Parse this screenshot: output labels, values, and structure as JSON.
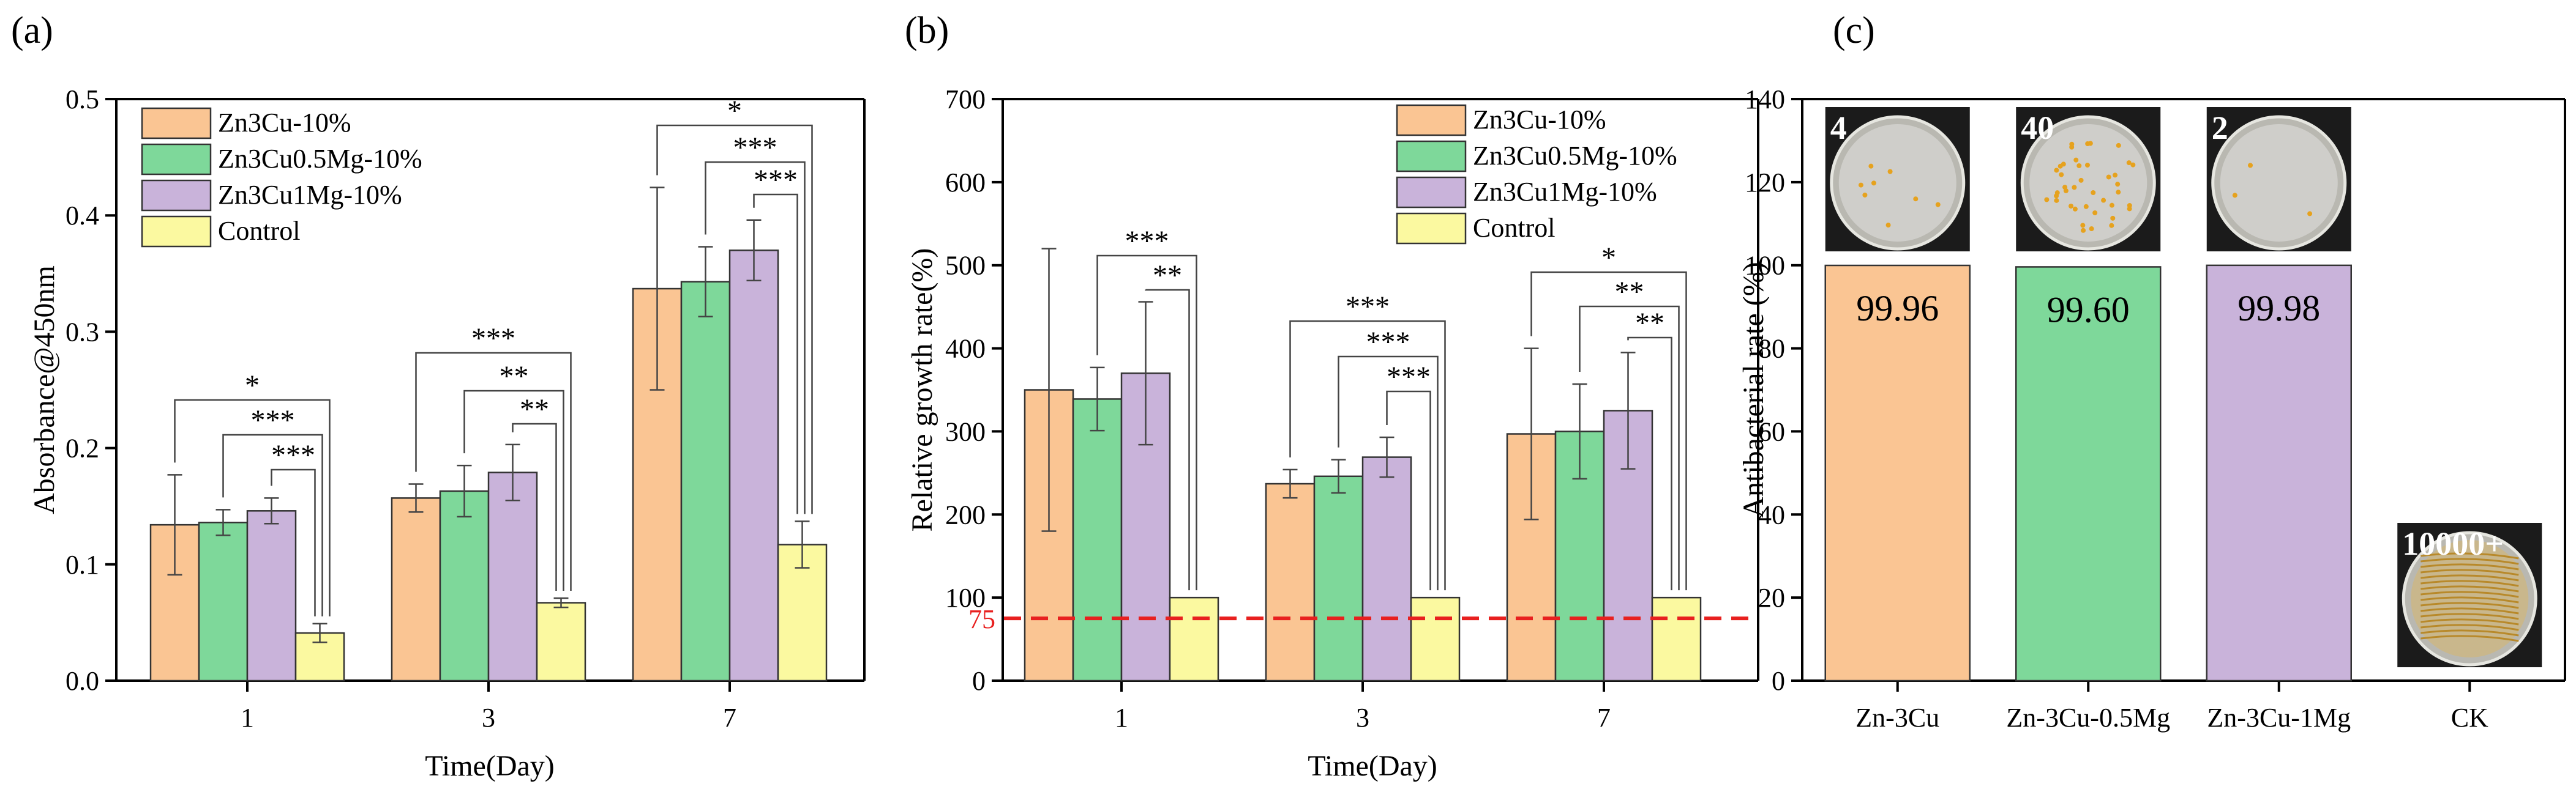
{
  "colors": {
    "Zn3Cu-10%": "#FAC593",
    "Zn3Cu0.5Mg-10%": "#7ED89A",
    "Zn3Cu1Mg-10%": "#C9B3DA",
    "Control": "#FBF9A0",
    "Zn-3Cu": "#FAC593",
    "Zn-3Cu-0.5Mg": "#7ED89A",
    "Zn-3Cu-1Mg": "#C9B3DA",
    "reference_line": "#E8201F"
  },
  "chart_data": [
    {
      "panel": "(a)",
      "type": "bar",
      "xlabel": "Time(Day)",
      "ylabel": "Absorbance@450nm",
      "ylim": [
        0,
        0.5
      ],
      "yticks": [
        "0.0",
        "0.1",
        "0.2",
        "0.3",
        "0.4",
        "0.5"
      ],
      "categories": [
        "1",
        "3",
        "7"
      ],
      "legend_position": "top-left",
      "series": [
        {
          "name": "Zn3Cu-10%",
          "values": [
            0.134,
            0.157,
            0.337
          ],
          "errors": [
            0.043,
            0.012,
            0.087
          ]
        },
        {
          "name": "Zn3Cu0.5Mg-10%",
          "values": [
            0.136,
            0.163,
            0.343
          ],
          "errors": [
            0.011,
            0.022,
            0.03
          ]
        },
        {
          "name": "Zn3Cu1Mg-10%",
          "values": [
            0.146,
            0.179,
            0.37
          ],
          "errors": [
            0.011,
            0.024,
            0.026
          ]
        },
        {
          "name": "Control",
          "values": [
            0.041,
            0.067,
            0.117
          ],
          "errors": [
            0.008,
            0.004,
            0.02
          ]
        }
      ],
      "significance": [
        {
          "category": "1",
          "from": "Zn3Cu-10%",
          "label": "*"
        },
        {
          "category": "1",
          "from": "Zn3Cu0.5Mg-10%",
          "label": "***"
        },
        {
          "category": "1",
          "from": "Zn3Cu1Mg-10%",
          "label": "***"
        },
        {
          "category": "3",
          "from": "Zn3Cu-10%",
          "label": "***"
        },
        {
          "category": "3",
          "from": "Zn3Cu0.5Mg-10%",
          "label": "**"
        },
        {
          "category": "3",
          "from": "Zn3Cu1Mg-10%",
          "label": "**"
        },
        {
          "category": "7",
          "from": "Zn3Cu-10%",
          "label": "*"
        },
        {
          "category": "7",
          "from": "Zn3Cu0.5Mg-10%",
          "label": "***"
        },
        {
          "category": "7",
          "from": "Zn3Cu1Mg-10%",
          "label": "***"
        }
      ]
    },
    {
      "panel": "(b)",
      "type": "bar",
      "xlabel": "Time(Day)",
      "ylabel": "Relative growth rate(%)",
      "ylim": [
        0,
        700
      ],
      "yticks": [
        "0",
        "100",
        "200",
        "300",
        "400",
        "500",
        "600",
        "700"
      ],
      "categories": [
        "1",
        "3",
        "7"
      ],
      "legend_position": "top-right",
      "reference_line": {
        "value": 75,
        "label": "75"
      },
      "series": [
        {
          "name": "Zn3Cu-10%",
          "values": [
            350,
            237,
            297
          ],
          "errors": [
            170,
            17,
            103
          ]
        },
        {
          "name": "Zn3Cu0.5Mg-10%",
          "values": [
            339,
            246,
            300
          ],
          "errors": [
            38,
            20,
            57
          ]
        },
        {
          "name": "Zn3Cu1Mg-10%",
          "values": [
            370,
            269,
            325
          ],
          "errors": [
            86,
            24,
            70
          ]
        },
        {
          "name": "Control",
          "values": [
            100,
            100,
            100
          ],
          "errors": [
            0,
            0,
            0
          ]
        }
      ],
      "significance": [
        {
          "category": "1",
          "from": "Zn3Cu0.5Mg-10%",
          "label": "***"
        },
        {
          "category": "1",
          "from": "Zn3Cu1Mg-10%",
          "label": "**"
        },
        {
          "category": "3",
          "from": "Zn3Cu-10%",
          "label": "***"
        },
        {
          "category": "3",
          "from": "Zn3Cu0.5Mg-10%",
          "label": "***"
        },
        {
          "category": "3",
          "from": "Zn3Cu1Mg-10%",
          "label": "***"
        },
        {
          "category": "7",
          "from": "Zn3Cu-10%",
          "label": "*"
        },
        {
          "category": "7",
          "from": "Zn3Cu0.5Mg-10%",
          "label": "**"
        },
        {
          "category": "7",
          "from": "Zn3Cu1Mg-10%",
          "label": "**"
        }
      ]
    },
    {
      "panel": "(c)",
      "type": "bar",
      "xlabel": "",
      "ylabel": "Antibacterial rate (%)",
      "ylim": [
        0,
        140
      ],
      "yticks": [
        "0",
        "20",
        "40",
        "60",
        "80",
        "100",
        "120",
        "140"
      ],
      "categories": [
        "Zn-3Cu",
        "Zn-3Cu-0.5Mg",
        "Zn-3Cu-1Mg",
        "CK"
      ],
      "values": [
        99.96,
        99.6,
        99.98,
        null
      ],
      "value_labels": [
        "99.96",
        "99.60",
        "99.98",
        ""
      ],
      "colony_counts": [
        "4",
        "40",
        "2",
        "10000+"
      ]
    }
  ]
}
